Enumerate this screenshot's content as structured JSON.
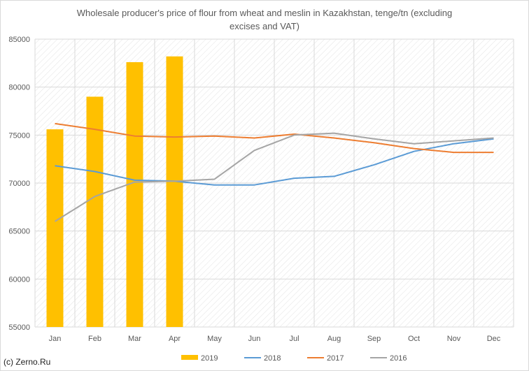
{
  "chart_data": {
    "type": "bar",
    "title_line1": "Wholesale producer's price of flour from wheat and meslin in Kazakhstan, tenge/tn (excluding",
    "title_line2": "excises and VAT)",
    "categories": [
      "Jan",
      "Feb",
      "Mar",
      "Apr",
      "May",
      "Jun",
      "Jul",
      "Aug",
      "Sep",
      "Oct",
      "Nov",
      "Dec"
    ],
    "ylim": [
      55000,
      85000
    ],
    "yticks": [
      55000,
      60000,
      65000,
      70000,
      75000,
      80000,
      85000
    ],
    "grid": "hatched",
    "legend_position": "bottom",
    "series": [
      {
        "name": "2019",
        "kind": "bar",
        "color": "#ffc000",
        "values": [
          75600,
          79000,
          82600,
          83200,
          null,
          null,
          null,
          null,
          null,
          null,
          null,
          null
        ]
      },
      {
        "name": "2018",
        "kind": "line",
        "color": "#5b9bd5",
        "values": [
          71800,
          71200,
          70300,
          70200,
          69800,
          69800,
          70500,
          70700,
          71900,
          73300,
          74100,
          74600
        ]
      },
      {
        "name": "2017",
        "kind": "line",
        "color": "#ed7d31",
        "values": [
          76200,
          75600,
          74900,
          74800,
          74900,
          74700,
          75100,
          74700,
          74200,
          73600,
          73200,
          73200
        ]
      },
      {
        "name": "2016",
        "kind": "line",
        "color": "#a5a5a5",
        "values": [
          66000,
          68600,
          70100,
          70200,
          70400,
          73400,
          75000,
          75200,
          74600,
          74100,
          74400,
          74700
        ]
      }
    ]
  },
  "footer": {
    "copyright": "(c) Zerno.Ru"
  }
}
